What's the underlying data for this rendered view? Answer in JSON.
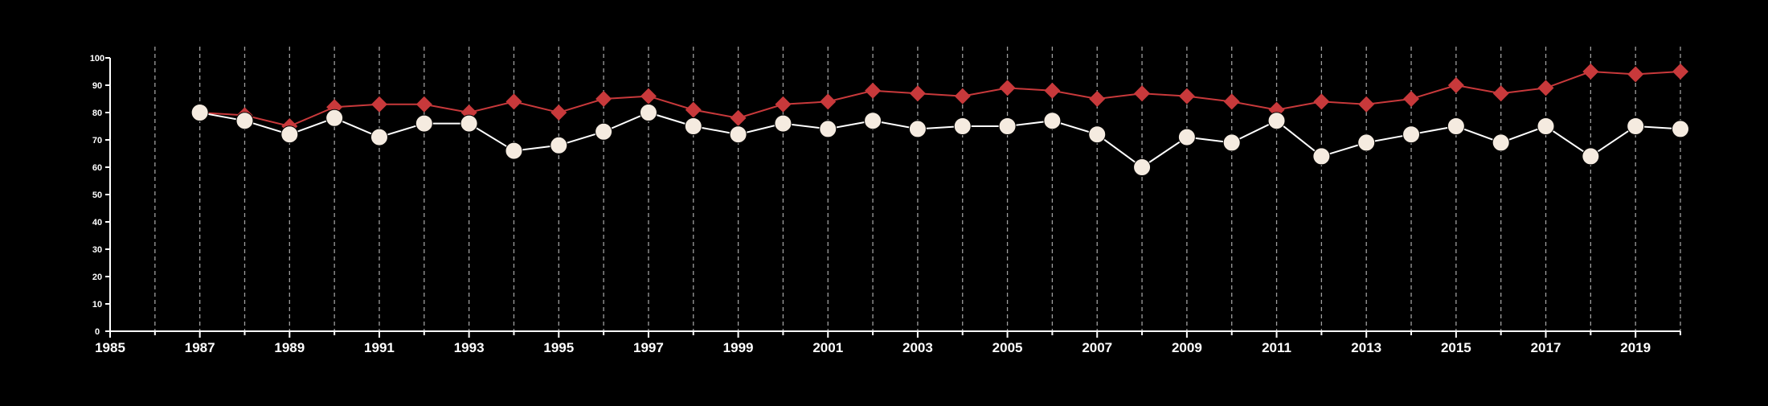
{
  "chart_data": {
    "type": "line",
    "title": "",
    "xlabel": "",
    "ylabel": "",
    "xlim": [
      1985,
      2020
    ],
    "ylim": [
      0,
      100
    ],
    "x_ticks": [
      "1985",
      "1987",
      "1989",
      "1991",
      "1993",
      "1995",
      "1997",
      "1999",
      "2001",
      "2003",
      "2005",
      "2007",
      "2009",
      "2011",
      "2013",
      "2015",
      "2017",
      "2019"
    ],
    "y_ticks": [
      "0",
      "10",
      "20",
      "30",
      "40",
      "50",
      "60",
      "70",
      "80",
      "90",
      "100"
    ],
    "grid": "vertical dashed lines at every year",
    "legend": "none",
    "x": [
      1987,
      1988,
      1989,
      1990,
      1991,
      1992,
      1993,
      1994,
      1995,
      1996,
      1997,
      1998,
      1999,
      2000,
      2001,
      2002,
      2003,
      2004,
      2005,
      2006,
      2007,
      2008,
      2009,
      2010,
      2011,
      2012,
      2013,
      2014,
      2015,
      2016,
      2017,
      2018,
      2019,
      2020
    ],
    "series": [
      {
        "marker": "diamond",
        "color": "#c8393b",
        "values": [
          80,
          79,
          75,
          82,
          83,
          83,
          80,
          84,
          80,
          85,
          86,
          81,
          78,
          83,
          84,
          88,
          87,
          86,
          89,
          88,
          85,
          87,
          86,
          84,
          81,
          84,
          83,
          85,
          90,
          87,
          89,
          95,
          94,
          95
        ]
      },
      {
        "marker": "circle",
        "color": "#f5ebe0",
        "line_color": "#ffffff",
        "values": [
          80,
          77,
          72,
          78,
          71,
          76,
          76,
          66,
          68,
          73,
          80,
          75,
          72,
          76,
          74,
          77,
          74,
          75,
          75,
          77,
          72,
          60,
          71,
          69,
          77,
          64,
          69,
          72,
          75,
          69,
          75,
          64,
          75,
          74
        ]
      }
    ],
    "colors": {
      "background": "#000000",
      "axis": "#ffffff",
      "grid": "#bbbbbb",
      "text": "#ffffff"
    }
  }
}
